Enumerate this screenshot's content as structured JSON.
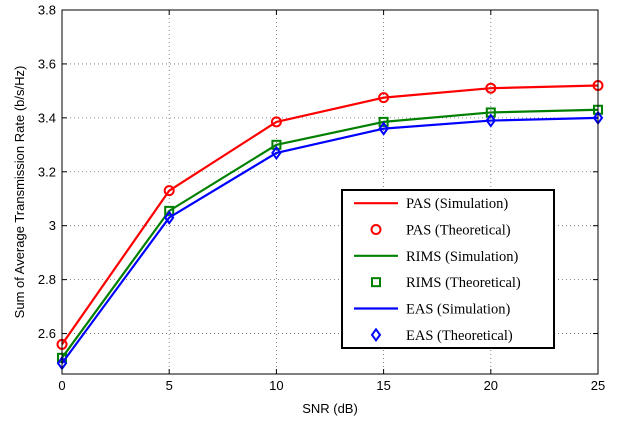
{
  "chart_data": {
    "type": "line",
    "xlabel": "SNR (dB)",
    "ylabel": "Sum of Average Transmission Rate (b/s/Hz)",
    "xlim": [
      0,
      25
    ],
    "ylim": [
      2.45,
      3.8
    ],
    "xticks": [
      "0",
      "5",
      "10",
      "15",
      "20",
      "25"
    ],
    "yticks": [
      "2.6",
      "2.8",
      "3",
      "3.2",
      "3.4",
      "3.6",
      "3.8"
    ],
    "grid": true,
    "legend_position": "lower-right",
    "x": [
      0,
      5,
      10,
      15,
      20,
      25
    ],
    "series": [
      {
        "name": "PAS (Simulation)",
        "kind": "line",
        "color": "#ff0000",
        "values": [
          2.56,
          3.13,
          3.385,
          3.475,
          3.51,
          3.52
        ]
      },
      {
        "name": "PAS (Theoretical)",
        "kind": "marker",
        "marker": "circle",
        "color": "#ff0000",
        "values": [
          2.56,
          3.13,
          3.385,
          3.475,
          3.51,
          3.52
        ]
      },
      {
        "name": "RIMS (Simulation)",
        "kind": "line",
        "color": "#008000",
        "values": [
          2.51,
          3.055,
          3.3,
          3.385,
          3.42,
          3.43
        ]
      },
      {
        "name": "RIMS (Theoretical)",
        "kind": "marker",
        "marker": "square",
        "color": "#008000",
        "values": [
          2.51,
          3.055,
          3.3,
          3.385,
          3.42,
          3.43
        ]
      },
      {
        "name": "EAS (Simulation)",
        "kind": "line",
        "color": "#0000ff",
        "values": [
          2.49,
          3.03,
          3.27,
          3.36,
          3.39,
          3.4
        ]
      },
      {
        "name": "EAS (Theoretical)",
        "kind": "marker",
        "marker": "diamond",
        "color": "#0000ff",
        "values": [
          2.49,
          3.03,
          3.27,
          3.36,
          3.39,
          3.4
        ]
      }
    ]
  }
}
